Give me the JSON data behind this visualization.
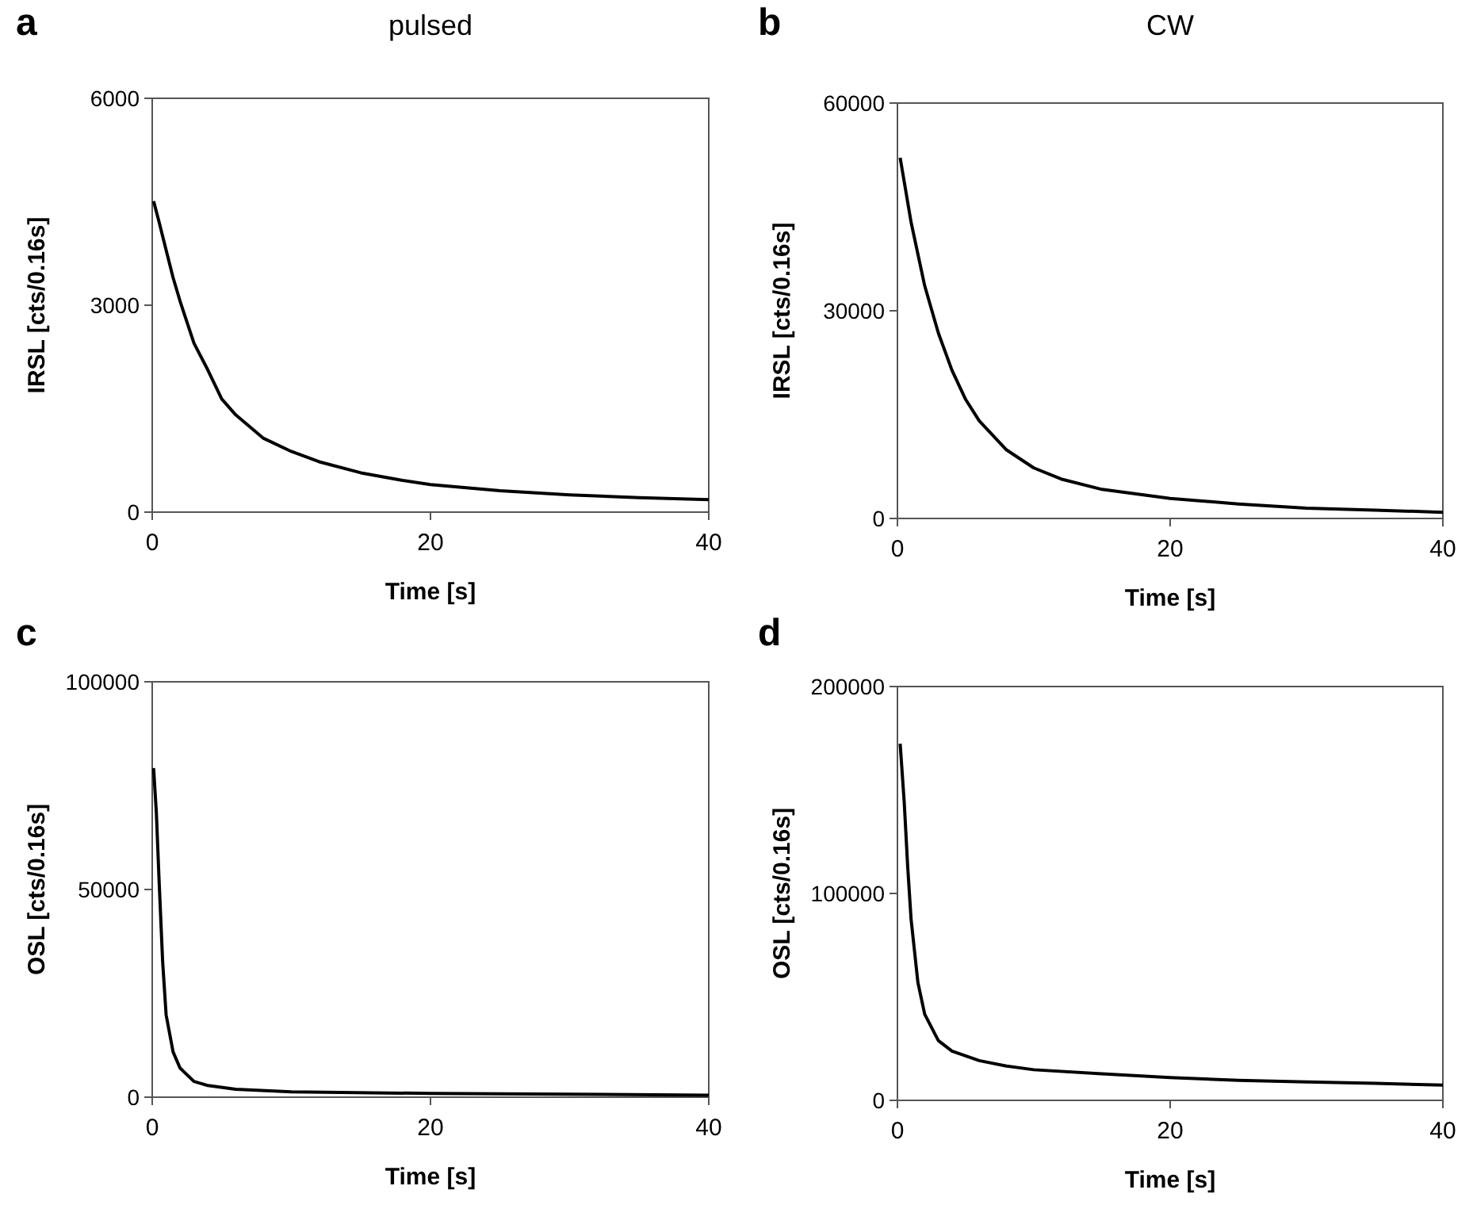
{
  "chart_data": [
    {
      "type": "line",
      "title": "a",
      "subtitle": "pulsed",
      "xlabel": "Time [s]",
      "ylabel": "IRSL [cts/0.16s]",
      "xlim": [
        0,
        40
      ],
      "xticks": [
        0,
        20,
        40
      ],
      "ylim": [
        0,
        6000
      ],
      "yticks": [
        0,
        3000,
        6000
      ],
      "series": [
        {
          "color": "#000000",
          "x": [
            0.1,
            0.5,
            1,
            1.5,
            2,
            3,
            4,
            5,
            6,
            8,
            10,
            12,
            15,
            18,
            20,
            25,
            30,
            35,
            40
          ],
          "values": [
            4510,
            4200,
            3800,
            3400,
            3060,
            2450,
            2060,
            1640,
            1410,
            1070,
            880,
            730,
            570,
            460,
            400,
            310,
            250,
            210,
            180
          ]
        }
      ]
    },
    {
      "type": "line",
      "title": "b",
      "subtitle": "CW",
      "xlabel": "Time [s]",
      "ylabel": "IRSL [cts/0.16s]",
      "xlim": [
        0,
        40
      ],
      "xticks": [
        0,
        20,
        40
      ],
      "ylim": [
        0,
        60000
      ],
      "yticks": [
        0,
        30000,
        60000
      ],
      "series": [
        {
          "color": "#000000",
          "x": [
            0.2,
            1,
            2,
            3,
            4,
            5,
            6,
            8,
            10,
            12,
            15,
            20,
            25,
            30,
            35,
            40
          ],
          "values": [
            52100,
            42800,
            33600,
            26800,
            21400,
            17200,
            14100,
            9900,
            7300,
            5700,
            4200,
            2900,
            2100,
            1500,
            1200,
            900
          ]
        }
      ]
    },
    {
      "type": "line",
      "title": "c",
      "xlabel": "Time [s]",
      "ylabel": "OSL [cts/0.16s]",
      "xlim": [
        0,
        40
      ],
      "xticks": [
        0,
        20,
        40
      ],
      "ylim": [
        0,
        100000
      ],
      "yticks": [
        0,
        50000,
        100000
      ],
      "series": [
        {
          "color": "#000000",
          "x": [
            0.1,
            0.3,
            0.5,
            0.75,
            1,
            1.5,
            2,
            3,
            4,
            6,
            10,
            20,
            30,
            40
          ],
          "values": [
            79200,
            68300,
            51700,
            32600,
            19800,
            10900,
            7000,
            3800,
            2800,
            1900,
            1300,
            900,
            700,
            500
          ]
        }
      ]
    },
    {
      "type": "line",
      "title": "d",
      "xlabel": "Time [s]",
      "ylabel": "OSL [cts/0.16s]",
      "xlim": [
        0,
        40
      ],
      "xticks": [
        0,
        20,
        40
      ],
      "ylim": [
        0,
        200000
      ],
      "yticks": [
        0,
        100000,
        200000
      ],
      "series": [
        {
          "color": "#000000",
          "x": [
            0.2,
            0.5,
            0.75,
            1,
            1.5,
            2,
            3,
            4,
            6,
            8,
            10,
            15,
            20,
            25,
            30,
            35,
            40
          ],
          "values": [
            172400,
            143800,
            113200,
            87600,
            57000,
            41600,
            28900,
            23800,
            19200,
            16600,
            14800,
            12800,
            11000,
            9700,
            8900,
            8200,
            7400
          ]
        }
      ]
    }
  ]
}
